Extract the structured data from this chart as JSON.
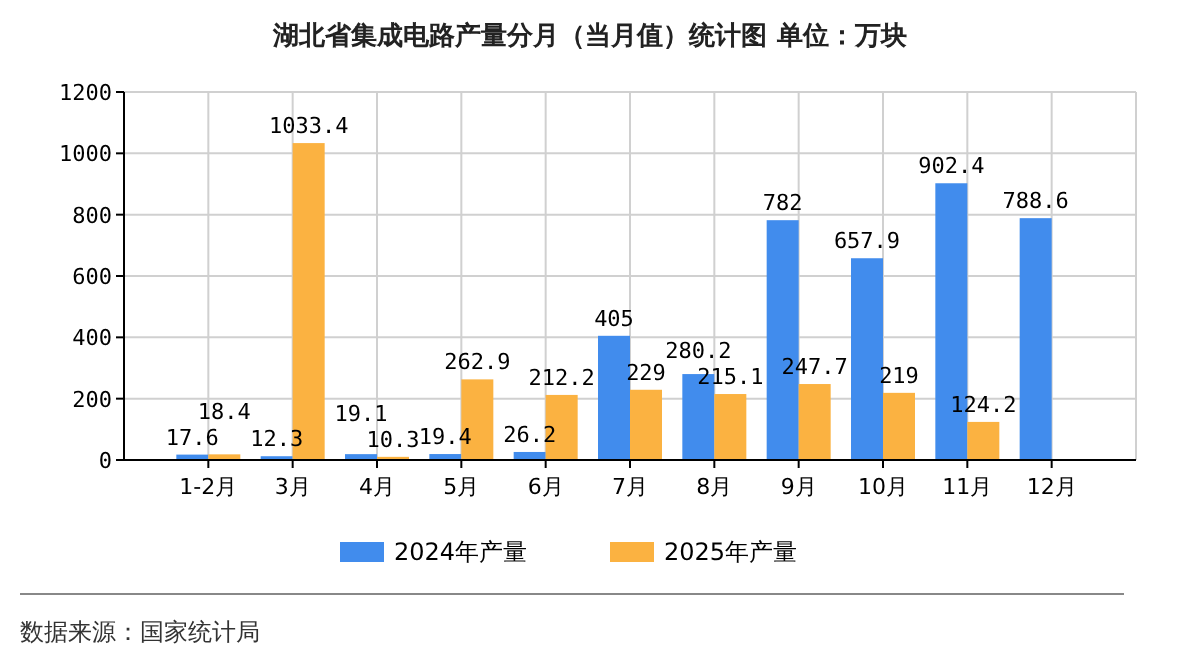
{
  "chart_data": {
    "type": "bar",
    "title": "湖北省集成电路产量分月（当月值）统计图 单位：万块",
    "categories": [
      "1-2月",
      "3月",
      "4月",
      "5月",
      "6月",
      "7月",
      "8月",
      "9月",
      "10月",
      "11月",
      "12月"
    ],
    "series": [
      {
        "name": "2024年产量",
        "color": "#418ced",
        "values": [
          17.6,
          12.3,
          19.1,
          19.4,
          26.2,
          405,
          280.2,
          782,
          657.9,
          902.4,
          788.6
        ]
      },
      {
        "name": "2025年产量",
        "color": "#fbb241",
        "values": [
          18.4,
          1033.4,
          10.3,
          262.9,
          212.2,
          229,
          215.1,
          247.7,
          219,
          124.2,
          null
        ]
      }
    ],
    "ylim": [
      0,
      1200
    ],
    "yticks": [
      0,
      200,
      400,
      600,
      800,
      1000,
      1200
    ],
    "grid": true,
    "legend": "bottom",
    "data_labels": true,
    "annotations": [
      "数据来源：国家统计局"
    ]
  }
}
